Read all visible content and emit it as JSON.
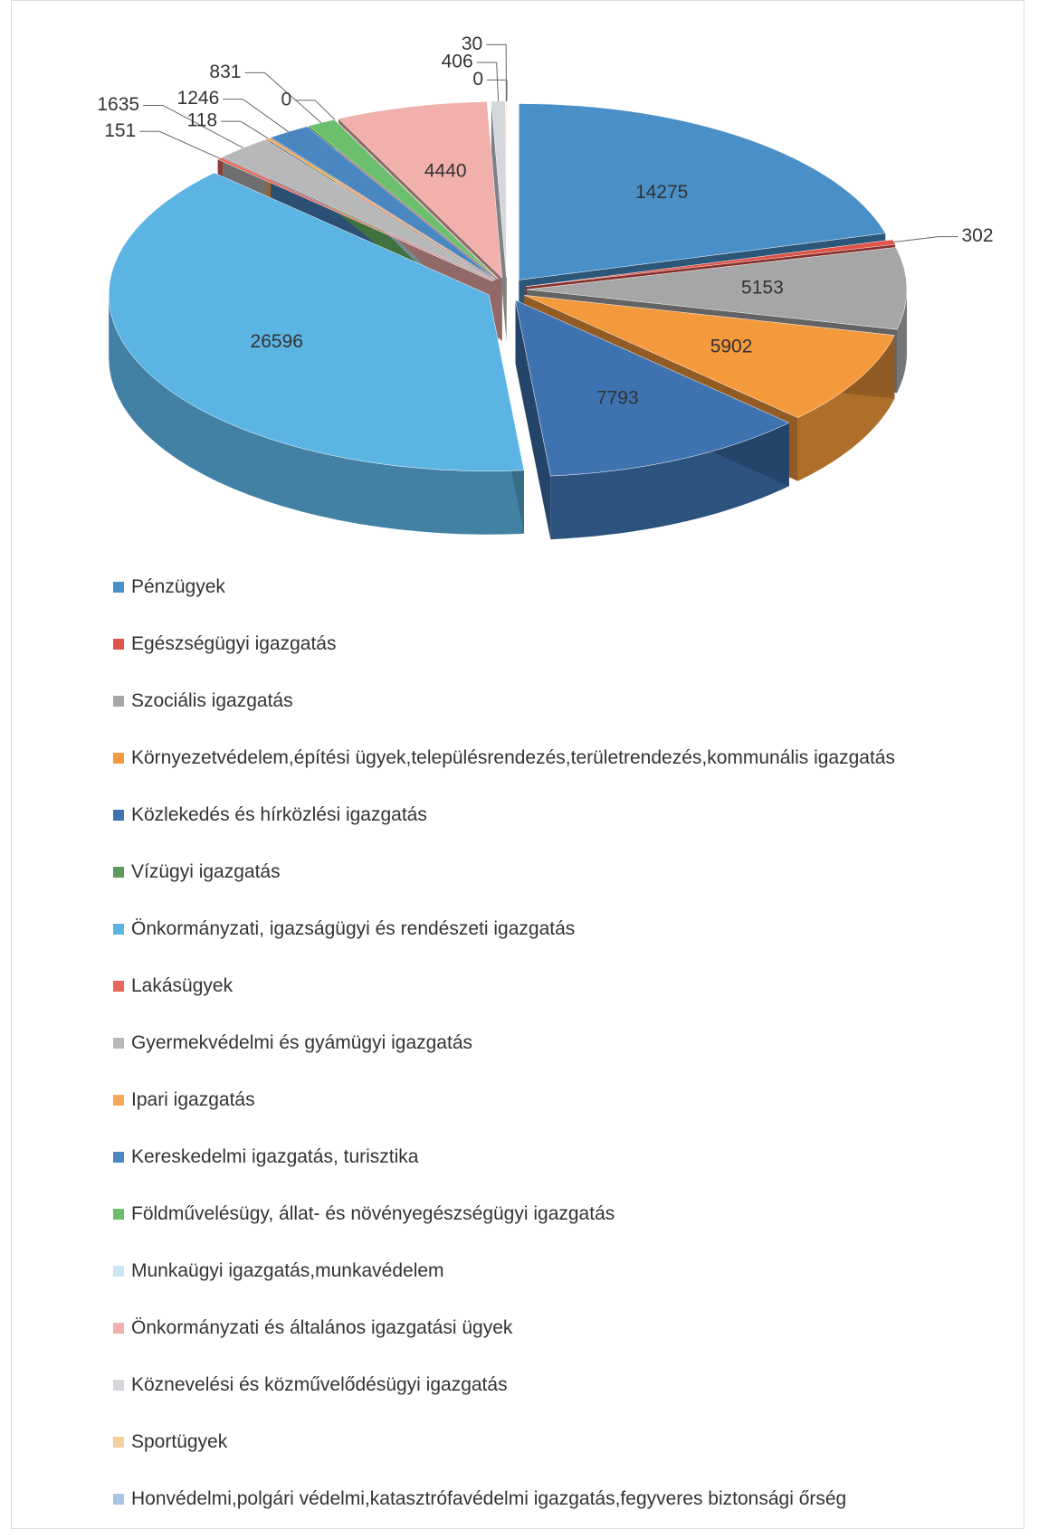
{
  "chart_data": {
    "type": "pie",
    "categories": [
      "Pénzügyek",
      "Egészségügyi igazgatás",
      "Szociális igazgatás",
      "Környezetvédelem,építési ügyek,településrendezés,területrendezés,kommunális igazgatás",
      "Közlekedés és hírközlési igazgatás",
      "Vízügyi igazgatás",
      "Önkormányzati, igazságügyi és rendészeti igazgatás",
      "Lakásügyek",
      "Gyermekvédelmi és gyámügyi igazgatás",
      "Ipari igazgatás",
      "Kereskedelmi igazgatás, turisztika",
      "Földművelésügy, állat- és növényegészségügyi igazgatás",
      "Munkaügyi igazgatás,munkavédelem",
      "Önkormányzati és általános igazgatási ügyek",
      "Köznevelési és közművelődésügyi igazgatás",
      "Sportügyek",
      "Honvédelmi,polgári védelmi,katasztrófavédelmi igazgatás,fegyveres biztonsági őrség"
    ],
    "values": [
      14275,
      302,
      5153,
      5902,
      7793,
      null,
      26596,
      151,
      1635,
      118,
      1246,
      831,
      0,
      4440,
      406,
      30,
      0
    ],
    "colors": [
      "#4a90c8",
      "#e0524a",
      "#a6a6a6",
      "#f5993d",
      "#3e72b0",
      "#5e9a5a",
      "#5cb4e4",
      "#e8665c",
      "#b8b8b8",
      "#f7a85a",
      "#4a86c0",
      "#6cbf6c",
      "#c9e6f2",
      "#f2b0ad",
      "#d4d8dc",
      "#f5cfa0",
      "#a9c4e6"
    ],
    "legend": "bottom"
  }
}
